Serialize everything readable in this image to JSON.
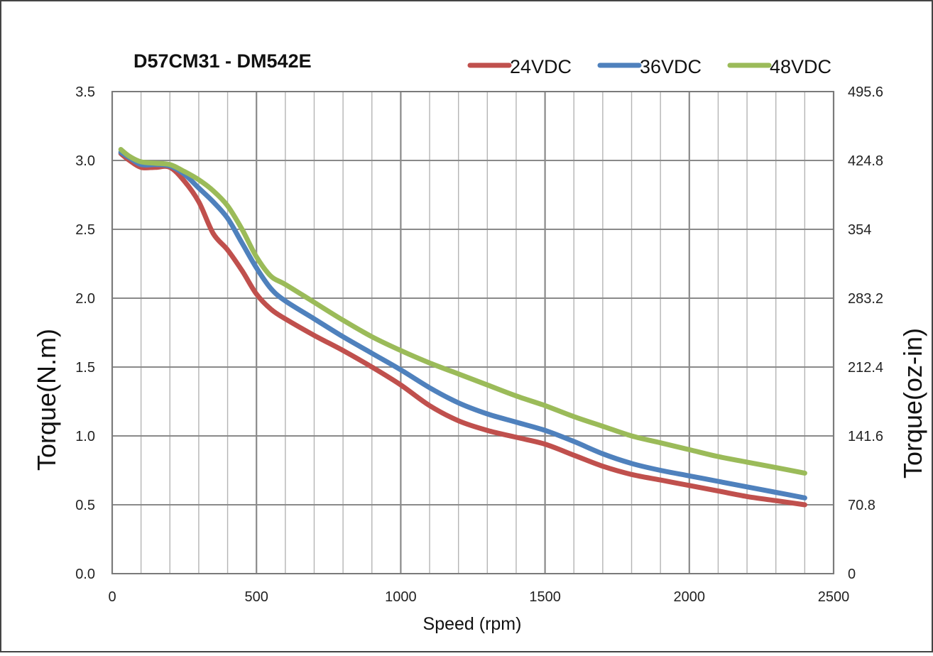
{
  "chart_data": {
    "type": "line",
    "title": "D57CM31 - DM542E",
    "xlabel": "Speed (rpm)",
    "ylabel": "Torque(N.m)",
    "y2label": "Torque(oz-in)",
    "xlim": [
      0,
      2500
    ],
    "ylim": [
      0,
      3.5
    ],
    "xticks": [
      "0",
      "500",
      "1000",
      "1500",
      "2000",
      "2500"
    ],
    "yticks": [
      "0.0",
      "0.5",
      "1.0",
      "1.5",
      "2.0",
      "2.5",
      "3.0",
      "3.5"
    ],
    "y2ticks": [
      "0",
      "70.8",
      "141.6",
      "212.4",
      "283.2",
      "354",
      "424.8",
      "495.6"
    ],
    "grid": true,
    "legend_position": "top-right",
    "series": [
      {
        "name": "24VDC",
        "color": "#c0504d",
        "x": [
          30,
          60,
          100,
          150,
          200,
          250,
          300,
          350,
          400,
          450,
          500,
          550,
          600,
          700,
          800,
          900,
          1000,
          1100,
          1200,
          1300,
          1400,
          1500,
          1600,
          1700,
          1800,
          1900,
          2000,
          2100,
          2200,
          2300,
          2400
        ],
        "y": [
          3.05,
          3.0,
          2.95,
          2.95,
          2.95,
          2.85,
          2.7,
          2.47,
          2.35,
          2.2,
          2.03,
          1.92,
          1.85,
          1.73,
          1.62,
          1.5,
          1.37,
          1.22,
          1.11,
          1.04,
          0.99,
          0.94,
          0.86,
          0.78,
          0.72,
          0.68,
          0.64,
          0.6,
          0.56,
          0.53,
          0.5
        ]
      },
      {
        "name": "36VDC",
        "color": "#4f81bd",
        "x": [
          30,
          60,
          100,
          150,
          200,
          250,
          300,
          350,
          400,
          450,
          500,
          550,
          600,
          700,
          800,
          900,
          1000,
          1100,
          1200,
          1300,
          1400,
          1500,
          1600,
          1700,
          1800,
          1900,
          2000,
          2100,
          2200,
          2300,
          2400
        ],
        "y": [
          3.06,
          3.02,
          2.97,
          2.97,
          2.96,
          2.9,
          2.8,
          2.7,
          2.58,
          2.4,
          2.22,
          2.07,
          1.98,
          1.85,
          1.72,
          1.6,
          1.48,
          1.35,
          1.24,
          1.16,
          1.1,
          1.04,
          0.96,
          0.87,
          0.8,
          0.75,
          0.71,
          0.67,
          0.63,
          0.59,
          0.55
        ]
      },
      {
        "name": "48VDC",
        "color": "#9bbb59",
        "x": [
          30,
          60,
          100,
          150,
          200,
          250,
          300,
          350,
          400,
          450,
          500,
          550,
          600,
          700,
          800,
          900,
          1000,
          1100,
          1200,
          1300,
          1400,
          1500,
          1600,
          1700,
          1800,
          1900,
          2000,
          2100,
          2200,
          2300,
          2400
        ],
        "y": [
          3.08,
          3.03,
          2.99,
          2.98,
          2.97,
          2.92,
          2.86,
          2.78,
          2.67,
          2.5,
          2.3,
          2.16,
          2.1,
          1.97,
          1.84,
          1.72,
          1.62,
          1.53,
          1.45,
          1.37,
          1.29,
          1.22,
          1.14,
          1.07,
          1.0,
          0.95,
          0.9,
          0.85,
          0.81,
          0.77,
          0.73
        ]
      }
    ]
  }
}
